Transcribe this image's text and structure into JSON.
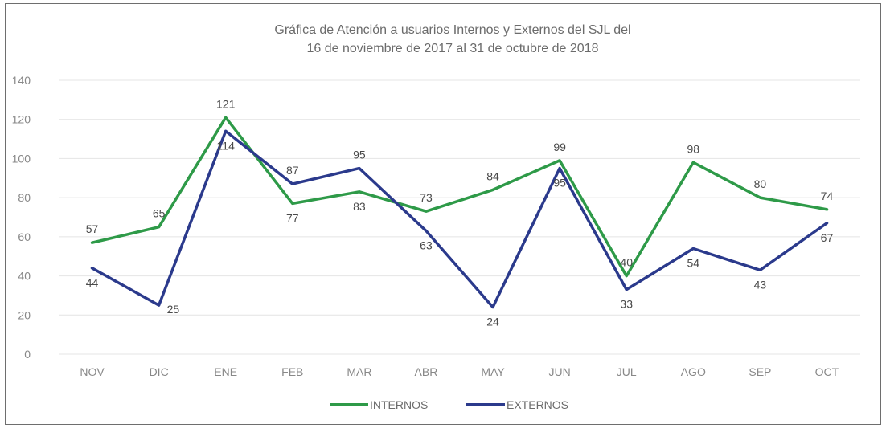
{
  "chart_data": {
    "type": "line",
    "title_lines": [
      "Gráfica de Atención a usuarios Internos y Externos del SJL del",
      "16 de noviembre de 2017 al 31 de octubre de 2018"
    ],
    "categories": [
      "NOV",
      "DIC",
      "ENE",
      "FEB",
      "MAR",
      "ABR",
      "MAY",
      "JUN",
      "JUL",
      "AGO",
      "SEP",
      "OCT"
    ],
    "ylim": [
      0,
      140
    ],
    "yticks": [
      0,
      20,
      40,
      60,
      80,
      100,
      120,
      140
    ],
    "grid": true,
    "legend_position": "bottom",
    "series": [
      {
        "name": "INTERNOS",
        "color": "#2e9a48",
        "values": [
          57,
          65,
          121,
          77,
          83,
          73,
          84,
          99,
          40,
          98,
          80,
          74
        ],
        "label_side": [
          "above",
          "above",
          "above",
          "below",
          "below",
          "above",
          "above",
          "above",
          "above",
          "above",
          "above",
          "above"
        ]
      },
      {
        "name": "EXTERNOS",
        "color": "#2b3a8c",
        "values": [
          44,
          25,
          114,
          87,
          95,
          63,
          24,
          95,
          33,
          54,
          43,
          67
        ],
        "label_side": [
          "below",
          "right",
          "below",
          "above",
          "above",
          "below",
          "below",
          "below",
          "below",
          "below",
          "below",
          "below"
        ]
      }
    ]
  }
}
